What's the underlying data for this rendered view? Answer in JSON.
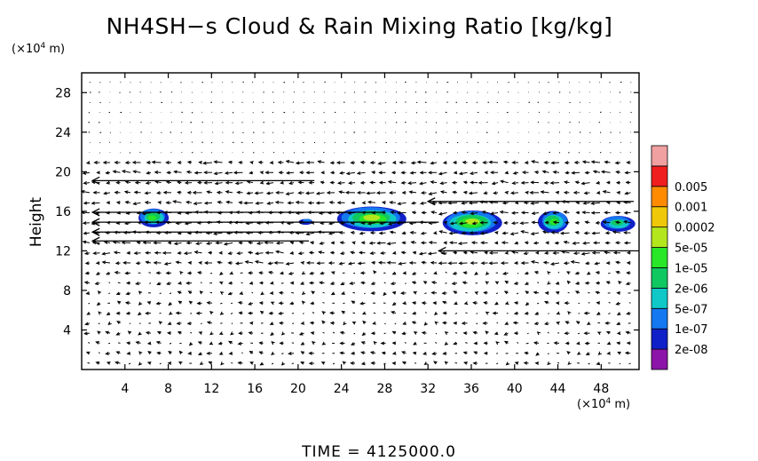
{
  "title": "NH4SH−s Cloud & Rain Mixing Ratio [kg/kg]",
  "time_label": "TIME  =  4125000.0",
  "chart_data": {
    "type": "heatmap",
    "title": "NH4SH−s Cloud & Rain Mixing Ratio [kg/kg]",
    "xlabel": "",
    "ylabel": "Height",
    "x_unit": {
      "prefix": "(×10",
      "exp": "4",
      "suffix": " m)"
    },
    "y_unit": {
      "prefix": "(×10",
      "exp": "4",
      "suffix": " m)"
    },
    "xlim": [
      0,
      51.5
    ],
    "ylim": [
      0,
      30
    ],
    "x_ticks": [
      4,
      8,
      12,
      16,
      20,
      24,
      28,
      32,
      36,
      40,
      44,
      48
    ],
    "y_ticks": [
      4,
      8,
      12,
      16,
      20,
      24,
      28
    ],
    "colorbar": {
      "levels": [
        "2e-08",
        "1e-07",
        "5e-07",
        "2e-06",
        "1e-05",
        "5e-05",
        "0.0002",
        "0.001",
        "0.005"
      ],
      "colors": [
        "#8c14a8",
        "#1020c8",
        "#1478f0",
        "#10c8c8",
        "#10c860",
        "#28e628",
        "#b4e61e",
        "#f0c80a",
        "#ff8c00",
        "#f01e1e",
        "#f0a0a0"
      ]
    },
    "clouds": [
      {
        "x": 6.6,
        "y": 15.4,
        "w": 2.8,
        "h": 1.9,
        "peak": "1e-05"
      },
      {
        "x": 20.8,
        "y": 15.0,
        "w": 1.3,
        "h": 0.6,
        "peak": "1e-07"
      },
      {
        "x": 26.8,
        "y": 15.3,
        "w": 6.4,
        "h": 2.5,
        "peak": "5e-05"
      },
      {
        "x": 36.0,
        "y": 14.9,
        "w": 5.5,
        "h": 2.5,
        "peak": "5e-05"
      },
      {
        "x": 43.6,
        "y": 15.0,
        "w": 2.8,
        "h": 2.2,
        "peak": "1e-05"
      },
      {
        "x": 49.5,
        "y": 14.8,
        "w": 3.2,
        "h": 1.6,
        "peak": "2e-06"
      }
    ],
    "jet_lines": [
      {
        "y": 19.1,
        "x0": 1.0,
        "x1": 21.5
      },
      {
        "y": 15.9,
        "x0": 1.0,
        "x1": 28.0
      },
      {
        "y": 14.9,
        "x0": 1.0,
        "x1": 33.0
      },
      {
        "y": 13.9,
        "x0": 1.0,
        "x1": 24.0
      },
      {
        "y": 13.0,
        "x0": 1.0,
        "x1": 21.0
      },
      {
        "y": 12.0,
        "x0": 33.0,
        "x1": 51.0
      },
      {
        "y": 17.0,
        "x0": 32.0,
        "x1": 51.0
      }
    ]
  }
}
